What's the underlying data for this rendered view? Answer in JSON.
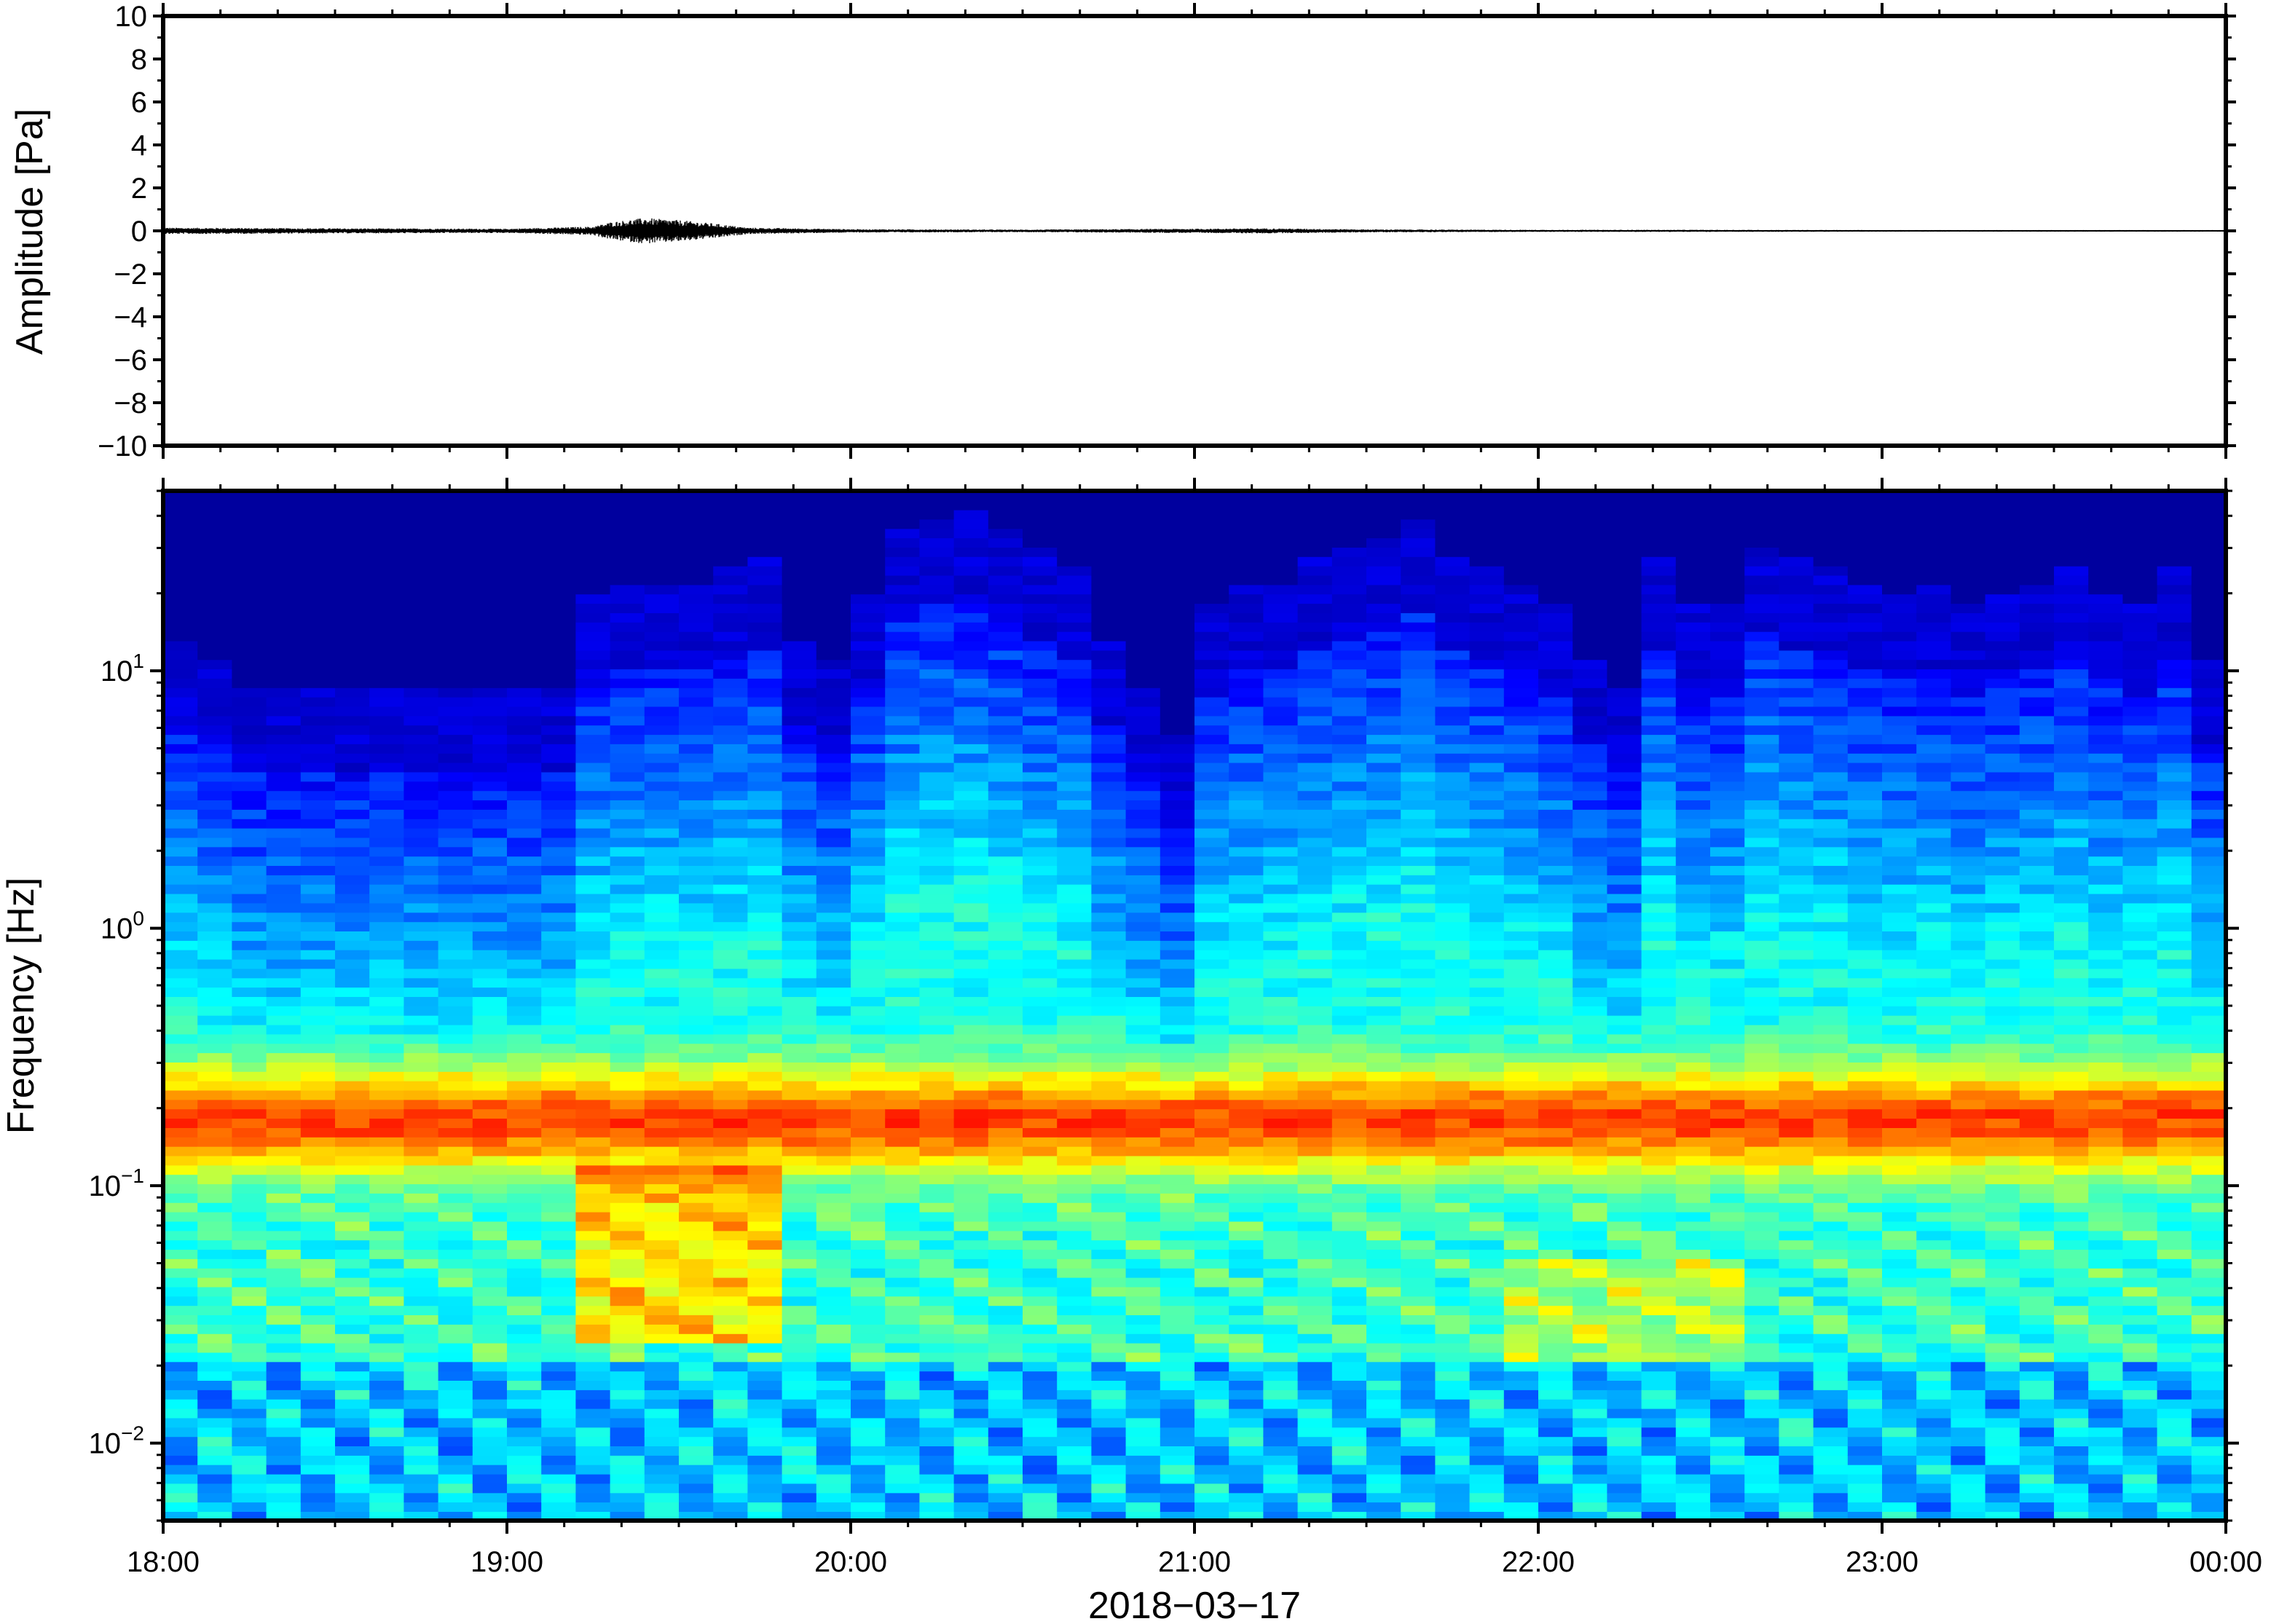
{
  "chart_data": [
    {
      "type": "line",
      "title": "",
      "ylabel": "Amplitude [Pa]",
      "xlabel": "",
      "ylim": [
        -10,
        10
      ],
      "yticks": [
        "10",
        "8",
        "6",
        "4",
        "2",
        "0",
        "−2",
        "−4",
        "−6",
        "−8",
        "−10"
      ],
      "ytick_values": [
        10,
        8,
        6,
        4,
        2,
        0,
        -2,
        -4,
        -6,
        -8,
        -10
      ],
      "xlim_hours": [
        18,
        24
      ],
      "series_description": "pressure waveform, near 0 Pa; largest burst around 19:20–19:35 with peak about ±0.6 Pa",
      "series": [
        {
          "name": "",
          "envelope": {
            "t_hours": [
              18.0,
              18.5,
              19.0,
              19.25,
              19.3,
              19.4,
              19.5,
              19.6,
              19.7,
              20.0,
              20.5,
              21.0,
              21.2,
              21.5,
              22.0,
              22.5,
              23.0,
              23.5,
              24.0
            ],
            "amp_pa": [
              0.15,
              0.12,
              0.1,
              0.2,
              0.4,
              0.6,
              0.5,
              0.35,
              0.15,
              0.08,
              0.06,
              0.1,
              0.12,
              0.07,
              0.05,
              0.05,
              0.04,
              0.04,
              0.04
            ]
          }
        }
      ]
    },
    {
      "type": "heatmap",
      "title": "",
      "ylabel": "Frequency [Hz]",
      "xlabel": "2018−03−17",
      "yscale": "log",
      "ylim_hz": [
        0.005,
        50
      ],
      "yticks": [
        {
          "base": "10",
          "exp": "1",
          "value": 10
        },
        {
          "base": "10",
          "exp": "0",
          "value": 1
        },
        {
          "base": "10",
          "exp": "−1",
          "value": 0.1
        },
        {
          "base": "10",
          "exp": "−2",
          "value": 0.01
        }
      ],
      "xticks": [
        "18:00",
        "19:00",
        "20:00",
        "21:00",
        "22:00",
        "23:00",
        "00:00"
      ],
      "xtick_hours": [
        18,
        19,
        20,
        21,
        22,
        23,
        24
      ],
      "colormap": "jet",
      "column_count": 60,
      "band_peak_hz": 0.18,
      "column_upper_cutoff_hz": [
        6,
        5,
        4,
        4,
        4,
        4,
        4,
        4,
        4,
        4,
        4,
        4,
        9,
        10,
        10,
        10,
        11,
        12,
        6,
        5,
        9,
        16,
        18,
        19,
        16,
        13,
        11,
        6,
        4,
        2.5,
        8,
        10,
        10,
        12,
        13,
        15,
        17,
        12,
        11,
        10,
        8,
        5,
        4,
        12,
        8,
        8,
        14,
        12,
        11,
        10,
        9,
        10,
        8,
        9,
        10,
        11,
        9,
        8,
        11,
        5
      ],
      "low_freq_warm_regions": [
        {
          "t_from_hours": 19.25,
          "t_to_hours": 19.75,
          "f_from_hz": 0.025,
          "f_to_hz": 0.12,
          "level": "orange"
        },
        {
          "t_from_hours": 21.9,
          "t_to_hours": 22.6,
          "f_from_hz": 0.02,
          "f_to_hz": 0.05,
          "level": "yellow"
        }
      ]
    }
  ]
}
